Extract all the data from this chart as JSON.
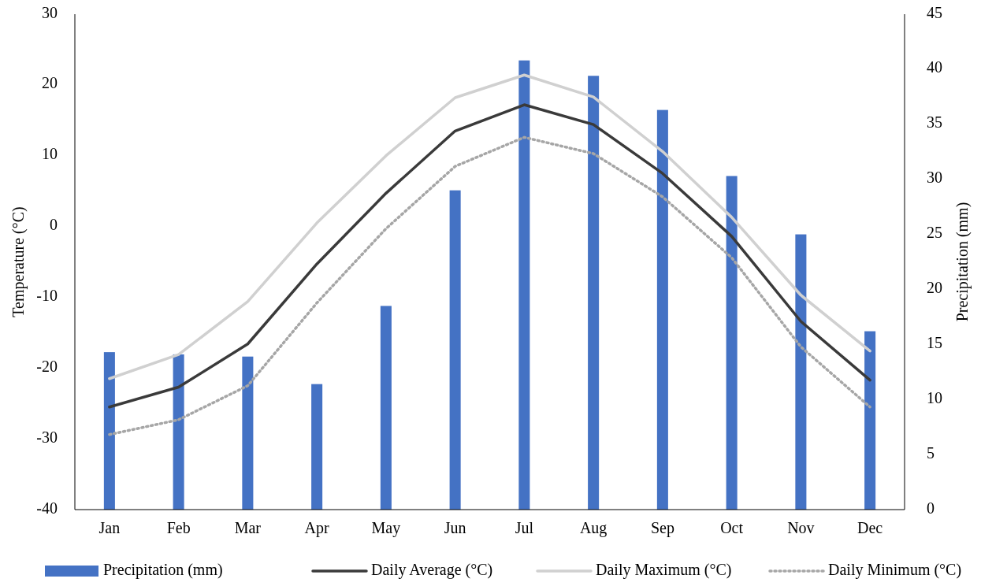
{
  "chart_data": {
    "type": "bar",
    "categories": [
      "Jan",
      "Feb",
      "Mar",
      "Apr",
      "May",
      "Jun",
      "Jul",
      "Aug",
      "Sep",
      "Oct",
      "Nov",
      "Dec"
    ],
    "ylabel": "Temperature (°C)",
    "y2label": "Precipitation (mm)",
    "ylim": [
      -40,
      30
    ],
    "yticks": [
      -40,
      -30,
      -20,
      -10,
      0,
      10,
      20,
      30
    ],
    "y2lim": [
      0,
      45
    ],
    "y2ticks": [
      0,
      5,
      10,
      15,
      20,
      25,
      30,
      35,
      40,
      45
    ],
    "grid": false,
    "legend": "bottom",
    "series": [
      {
        "name": "Precipitation (mm)",
        "axis": "y2",
        "color": "#4472c4",
        "values": [
          14.3,
          14.1,
          13.9,
          11.4,
          18.5,
          29.0,
          40.8,
          39.4,
          36.3,
          30.3,
          25.0,
          16.2
        ]
      },
      {
        "name": "Daily Average (°C)",
        "type": "line",
        "color": "#3a3a3a",
        "line_style": "solid",
        "values": [
          -25.5,
          -22.7,
          -16.6,
          -5.3,
          4.7,
          13.5,
          17.2,
          14.4,
          7.5,
          -1.4,
          -13.4,
          -21.7
        ]
      },
      {
        "name": "Daily Maximum (°C)",
        "type": "line",
        "color": "#d0d0d0",
        "line_style": "solid",
        "values": [
          -21.5,
          -18.1,
          -10.6,
          0.5,
          10.0,
          18.2,
          21.4,
          18.3,
          10.6,
          1.3,
          -9.7,
          -17.6
        ]
      },
      {
        "name": "Daily Minimum (°C)",
        "type": "line",
        "color": "#a6a6a6",
        "line_style": "dotted",
        "values": [
          -29.4,
          -27.3,
          -22.5,
          -10.8,
          -0.3,
          8.5,
          12.6,
          10.3,
          4.2,
          -4.4,
          -17.0,
          -25.5
        ]
      }
    ]
  }
}
